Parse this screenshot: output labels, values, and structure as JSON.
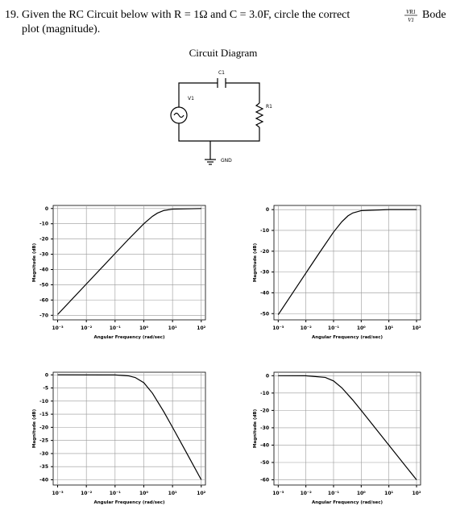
{
  "question": {
    "line1": "19. Given the RC Circuit below with R = 1Ω and C = 3.0F, circle the correct",
    "ratio_num": "VR1",
    "ratio_den": "V1",
    "line1_end": "Bode",
    "line2": "plot (magnitude)."
  },
  "diagram": {
    "title": "Circuit Diagram",
    "capacitor": "C1",
    "source": "V1",
    "resistor": "R1",
    "ground": "GND"
  },
  "chart_data": [
    {
      "type": "line",
      "xscale": "log",
      "grid": true,
      "ylabel": "Magnitude (dB)",
      "xlabel": "Angular Frequency (rad/sec)",
      "xlim": [
        0.0007,
        140
      ],
      "ylim": [
        -73,
        2
      ],
      "xticks": [
        {
          "value": 0.001,
          "label": "10⁻³"
        },
        {
          "value": 0.01,
          "label": "10⁻²"
        },
        {
          "value": 0.1,
          "label": "10⁻¹"
        },
        {
          "value": 1,
          "label": "10⁰"
        },
        {
          "value": 10,
          "label": "10¹"
        },
        {
          "value": 100,
          "label": "10²"
        }
      ],
      "yticks": [
        0,
        -10,
        -20,
        -30,
        -40,
        -50,
        -60,
        -70
      ],
      "x": [
        0.001,
        0.01,
        0.1,
        0.3,
        1,
        2,
        3,
        5,
        10,
        100
      ],
      "series": [
        {
          "color": "#000000",
          "values": [
            -69.5,
            -49.5,
            -29.5,
            -20.0,
            -10.0,
            -5.1,
            -3.0,
            -1.3,
            -0.4,
            0.0
          ]
        }
      ]
    },
    {
      "type": "line",
      "xscale": "log",
      "grid": true,
      "ylabel": "Magnitude (dB)",
      "xlabel": "Angular Frequency (rad/sec)",
      "xlim": [
        0.0007,
        140
      ],
      "ylim": [
        -53,
        2
      ],
      "xticks": [
        {
          "value": 0.001,
          "label": "10⁻³"
        },
        {
          "value": 0.01,
          "label": "10⁻²"
        },
        {
          "value": 0.1,
          "label": "10⁻¹"
        },
        {
          "value": 1,
          "label": "10⁰"
        },
        {
          "value": 10,
          "label": "10¹"
        },
        {
          "value": 100,
          "label": "10²"
        }
      ],
      "yticks": [
        0,
        -10,
        -20,
        -30,
        -40,
        -50
      ],
      "x": [
        0.001,
        0.01,
        0.03,
        0.1,
        0.2,
        0.333,
        0.5,
        1,
        10,
        100
      ],
      "series": [
        {
          "color": "#000000",
          "values": [
            -50.5,
            -30.5,
            -21.0,
            -10.8,
            -5.8,
            -3.0,
            -1.6,
            -0.5,
            0.0,
            0.0
          ]
        }
      ]
    },
    {
      "type": "line",
      "xscale": "log",
      "grid": true,
      "ylabel": "Magnitude (dB)",
      "xlabel": "Angular Frequency (rad/sec)",
      "xlim": [
        0.0007,
        140
      ],
      "ylim": [
        -42,
        1
      ],
      "xticks": [
        {
          "value": 0.001,
          "label": "10⁻³"
        },
        {
          "value": 0.01,
          "label": "10⁻²"
        },
        {
          "value": 0.1,
          "label": "10⁻¹"
        },
        {
          "value": 1,
          "label": "10⁰"
        },
        {
          "value": 10,
          "label": "10¹"
        },
        {
          "value": 100,
          "label": "10²"
        }
      ],
      "yticks": [
        0,
        -5,
        -10,
        -15,
        -20,
        -25,
        -30,
        -35,
        -40
      ],
      "x": [
        0.001,
        0.1,
        0.3,
        0.5,
        1,
        2,
        5,
        10,
        30,
        100
      ],
      "series": [
        {
          "color": "#000000",
          "values": [
            0.0,
            -0.04,
            -0.4,
            -1.0,
            -3.0,
            -7.0,
            -14.1,
            -20.0,
            -29.5,
            -40.0
          ]
        }
      ]
    },
    {
      "type": "line",
      "xscale": "log",
      "grid": true,
      "ylabel": "Magnitude (dB)",
      "xlabel": "Angular Frequency (rad/sec)",
      "xlim": [
        0.0007,
        140
      ],
      "ylim": [
        -63,
        2
      ],
      "xticks": [
        {
          "value": 0.001,
          "label": "10⁻³"
        },
        {
          "value": 0.01,
          "label": "10⁻²"
        },
        {
          "value": 0.1,
          "label": "10⁻¹"
        },
        {
          "value": 1,
          "label": "10⁰"
        },
        {
          "value": 10,
          "label": "10¹"
        },
        {
          "value": 100,
          "label": "10²"
        }
      ],
      "yticks": [
        0,
        -10,
        -20,
        -30,
        -40,
        -50,
        -60
      ],
      "x": [
        0.001,
        0.01,
        0.05,
        0.1,
        0.2,
        0.5,
        1,
        10,
        100
      ],
      "series": [
        {
          "color": "#000000",
          "values": [
            0.0,
            -0.04,
            -1.0,
            -3.0,
            -7.0,
            -14.1,
            -20.0,
            -40.0,
            -60.0
          ]
        }
      ]
    }
  ]
}
